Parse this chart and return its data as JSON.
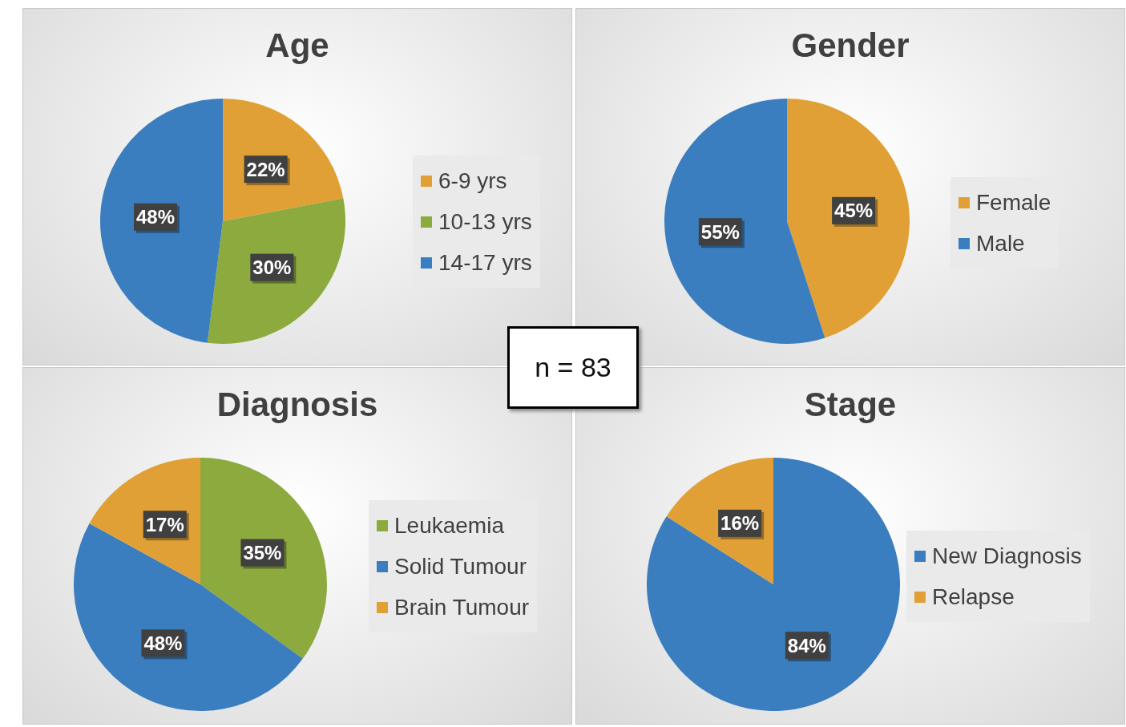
{
  "chart_data": [
    {
      "type": "pie",
      "title": "Age",
      "categories": [
        "6-9 yrs",
        "10-13 yrs",
        "14-17 yrs"
      ],
      "values": [
        22,
        30,
        48
      ],
      "value_labels": [
        "22%",
        "30%",
        "48%"
      ],
      "colors": [
        "#e0a035",
        "#8daa3f",
        "#3a7ebf"
      ],
      "legend": "right"
    },
    {
      "type": "pie",
      "title": "Gender",
      "categories": [
        "Female",
        "Male"
      ],
      "values": [
        45,
        55
      ],
      "value_labels": [
        "45%",
        "55%"
      ],
      "colors": [
        "#e0a035",
        "#3a7ebf"
      ],
      "legend": "right"
    },
    {
      "type": "pie",
      "title": "Diagnosis",
      "categories": [
        "Leukaemia",
        "Solid Tumour",
        "Brain Tumour"
      ],
      "values": [
        35,
        48,
        17
      ],
      "value_labels": [
        "35%",
        "48%",
        "17%"
      ],
      "colors": [
        "#8daa3f",
        "#3a7ebf",
        "#e0a035"
      ],
      "legend": "right"
    },
    {
      "type": "pie",
      "title": "Stage",
      "categories": [
        "New Diagnosis",
        "Relapse"
      ],
      "values": [
        84,
        16
      ],
      "value_labels": [
        "84%",
        "16%"
      ],
      "colors": [
        "#3a7ebf",
        "#e0a035"
      ],
      "legend": "right"
    },
    {
      "type": "other",
      "annotations": [
        "n = 83"
      ]
    }
  ]
}
